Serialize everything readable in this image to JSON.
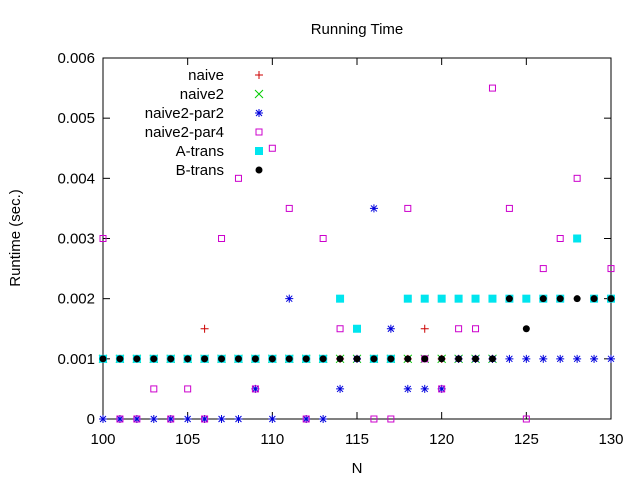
{
  "chart_data": {
    "type": "scatter",
    "title": "Running Time",
    "xlabel": "N",
    "ylabel": "Runtime (sec.)",
    "xlim": [
      100,
      130
    ],
    "ylim": [
      0,
      0.006
    ],
    "xticks": [
      "100",
      "105",
      "110",
      "115",
      "120",
      "125",
      "130"
    ],
    "yticks": [
      "0",
      "0.001",
      "0.002",
      "0.003",
      "0.004",
      "0.005",
      "0.006"
    ],
    "grid": false,
    "legend_position": "top-left",
    "series": [
      {
        "name": "naive",
        "marker": "plus",
        "color": "#cc0000",
        "x": [
          100,
          101,
          102,
          103,
          104,
          105,
          106,
          107,
          108,
          109,
          110,
          111,
          112,
          113,
          114,
          115,
          116,
          117,
          118,
          119,
          120,
          121,
          122,
          123
        ],
        "y": [
          0.001,
          0.001,
          0.001,
          0.001,
          0.001,
          0.001,
          0.0015,
          0.001,
          0.001,
          0.001,
          0.001,
          0.001,
          0.001,
          0.001,
          0.001,
          0.001,
          0.001,
          0.001,
          0.001,
          0.0015,
          0.001,
          0.001,
          0.001,
          0.001
        ]
      },
      {
        "name": "naive2",
        "marker": "cross",
        "color": "#00cc00",
        "x": [
          100,
          101,
          102,
          103,
          104,
          105,
          106,
          107,
          108,
          109,
          110,
          111,
          112,
          113,
          114,
          115,
          116,
          117,
          118,
          119,
          120,
          121,
          122,
          123
        ],
        "y": [
          0.001,
          0.001,
          0.001,
          0.001,
          0.001,
          0.001,
          0.001,
          0.001,
          0.001,
          0.001,
          0.001,
          0.001,
          0.001,
          0.001,
          0.001,
          0.001,
          0.001,
          0.001,
          0.001,
          0.001,
          0.001,
          0.001,
          0.001,
          0.001
        ]
      },
      {
        "name": "naive2-par2",
        "marker": "star",
        "color": "#0000dd",
        "x": [
          100,
          101,
          102,
          103,
          104,
          105,
          106,
          107,
          108,
          109,
          110,
          111,
          112,
          113,
          114,
          115,
          116,
          117,
          118,
          119,
          120,
          121,
          122,
          123,
          124,
          125,
          126,
          127,
          128,
          129,
          130
        ],
        "y": [
          0,
          0,
          0,
          0,
          0,
          0,
          0,
          0,
          0,
          0.0005,
          0,
          0.002,
          0,
          0,
          0.0005,
          0.001,
          0.0035,
          0.0015,
          0.0005,
          0.0005,
          0.0005,
          0.001,
          0.001,
          0.001,
          0.001,
          0.001,
          0.001,
          0.001,
          0.001,
          0.001,
          0.001
        ]
      },
      {
        "name": "naive2-par4",
        "marker": "open-square",
        "color": "#cc00cc",
        "x": [
          100,
          101,
          102,
          103,
          104,
          105,
          106,
          107,
          108,
          109,
          110,
          111,
          112,
          113,
          114,
          115,
          116,
          117,
          118,
          119,
          120,
          121,
          122,
          123,
          124,
          125,
          126,
          127,
          128,
          129,
          130
        ],
        "y": [
          0.003,
          0,
          0,
          0.0005,
          0,
          0.0005,
          0,
          0.003,
          0.004,
          0.0005,
          0.0045,
          0.0035,
          0,
          0.003,
          0.0015,
          0.0015,
          0,
          0,
          0.0035,
          0.001,
          0.0005,
          0.0015,
          0.0015,
          0.0055,
          0.0035,
          0,
          0.0025,
          0.003,
          0.004,
          0.002,
          0.0025
        ]
      },
      {
        "name": "A-trans",
        "marker": "filled-square",
        "color": "#00e5ee",
        "x": [
          100,
          101,
          102,
          103,
          104,
          105,
          106,
          107,
          108,
          109,
          110,
          111,
          112,
          113,
          114,
          115,
          116,
          117,
          118,
          119,
          120,
          121,
          122,
          123,
          124,
          125,
          126,
          127,
          128,
          129,
          130
        ],
        "y": [
          0.001,
          0.001,
          0.001,
          0.001,
          0.001,
          0.001,
          0.001,
          0.001,
          0.001,
          0.001,
          0.001,
          0.001,
          0.001,
          0.001,
          0.002,
          0.0015,
          0.001,
          0.001,
          0.002,
          0.002,
          0.002,
          0.002,
          0.002,
          0.002,
          0.002,
          0.002,
          0.002,
          0.002,
          0.003,
          0.002,
          0.002
        ]
      },
      {
        "name": "B-trans",
        "marker": "filled-circle",
        "color": "#000000",
        "x": [
          100,
          101,
          102,
          103,
          104,
          105,
          106,
          107,
          108,
          109,
          110,
          111,
          112,
          113,
          114,
          115,
          116,
          117,
          118,
          119,
          120,
          121,
          122,
          123,
          124,
          125,
          126,
          127,
          128,
          129,
          130
        ],
        "y": [
          0.001,
          0.001,
          0.001,
          0.001,
          0.001,
          0.001,
          0.001,
          0.001,
          0.001,
          0.001,
          0.001,
          0.001,
          0.001,
          0.001,
          0.001,
          0.001,
          0.001,
          0.001,
          0.001,
          0.001,
          0.001,
          0.001,
          0.001,
          0.001,
          0.002,
          0.0015,
          0.002,
          0.002,
          0.002,
          0.002,
          0.002
        ]
      }
    ]
  }
}
